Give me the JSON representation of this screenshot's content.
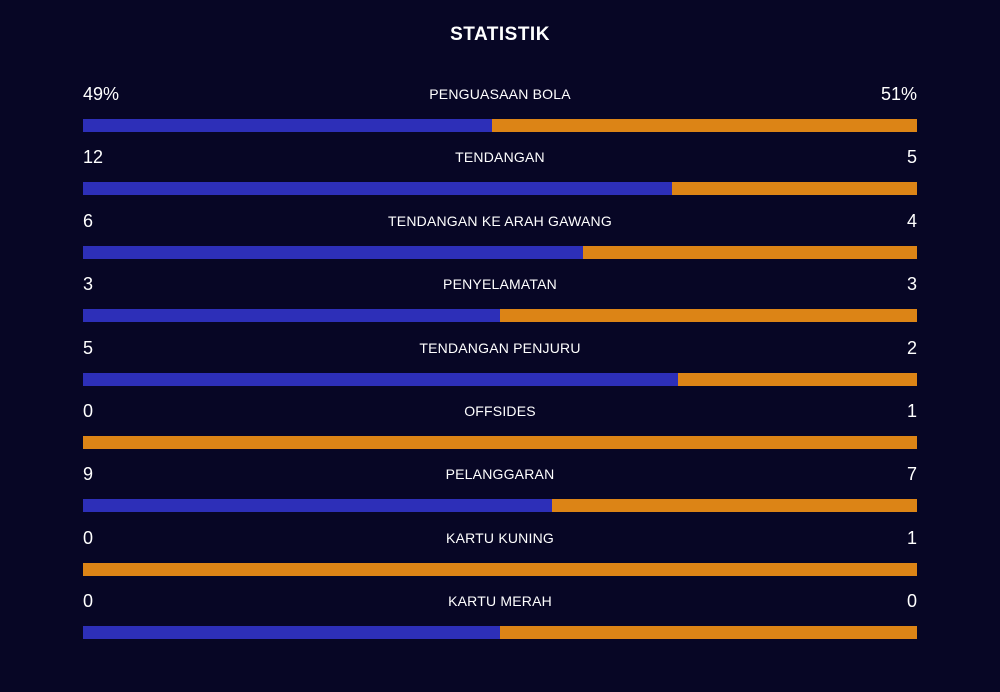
{
  "title": "STATISTIK",
  "colors": {
    "background": "#070625",
    "home": "#2d2fb8",
    "away": "#dc8416"
  },
  "stats": [
    {
      "label": "PENGUASAAN BOLA",
      "home": "49%",
      "away": "51%",
      "home_share": 0.49
    },
    {
      "label": "TENDANGAN",
      "home": "12",
      "away": "5",
      "home_share": 0.706
    },
    {
      "label": "TENDANGAN KE ARAH GAWANG",
      "home": "6",
      "away": "4",
      "home_share": 0.6
    },
    {
      "label": "PENYELAMATAN",
      "home": "3",
      "away": "3",
      "home_share": 0.5
    },
    {
      "label": "TENDANGAN PENJURU",
      "home": "5",
      "away": "2",
      "home_share": 0.714
    },
    {
      "label": "OFFSIDES",
      "home": "0",
      "away": "1",
      "home_share": 0
    },
    {
      "label": "PELANGGARAN",
      "home": "9",
      "away": "7",
      "home_share": 0.5625
    },
    {
      "label": "KARTU KUNING",
      "home": "0",
      "away": "1",
      "home_share": 0
    },
    {
      "label": "KARTU MERAH",
      "home": "0",
      "away": "0",
      "home_share": 0.5
    }
  ]
}
